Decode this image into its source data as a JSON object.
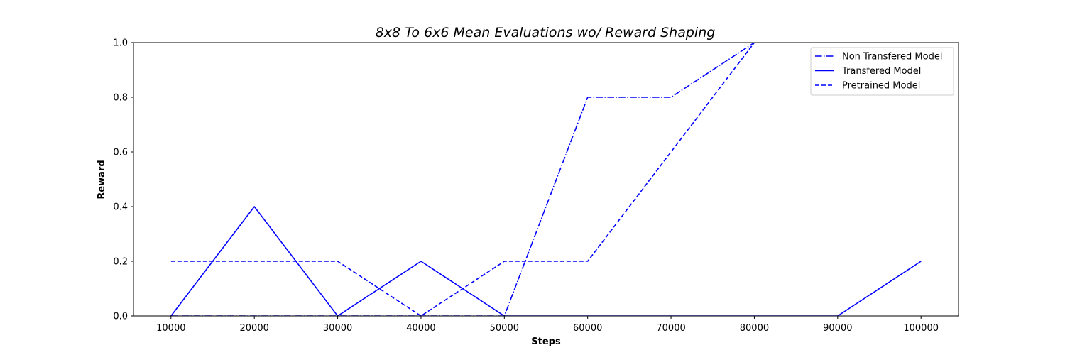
{
  "chart_data": {
    "type": "line",
    "title": "8x8 To 6x6 Mean Evaluations wo/ Reward Shaping",
    "xlabel": "Steps",
    "ylabel": "Reward",
    "x": [
      10000,
      20000,
      30000,
      40000,
      50000,
      60000,
      70000,
      80000,
      90000,
      100000
    ],
    "x_ticks": [
      "10000",
      "20000",
      "30000",
      "40000",
      "50000",
      "60000",
      "70000",
      "80000",
      "90000",
      "100000"
    ],
    "y_ticks": [
      "0.0",
      "0.2",
      "0.4",
      "0.6",
      "0.8",
      "1.0"
    ],
    "xlim": [
      5500,
      104500
    ],
    "ylim": [
      0.0,
      1.0
    ],
    "grid": false,
    "legend_position": "top-right",
    "series": [
      {
        "name": "Non Transfered Model",
        "style": "dashdot",
        "color": "#0000ff",
        "values": [
          0.0,
          0.0,
          0.0,
          0.0,
          0.0,
          0.8,
          0.8,
          1.0,
          null,
          null
        ]
      },
      {
        "name": "Transfered Model",
        "style": "solid",
        "color": "#0000ff",
        "values": [
          0.0,
          0.4,
          0.0,
          0.2,
          0.0,
          0.0,
          0.0,
          0.0,
          0.0,
          0.2
        ]
      },
      {
        "name": "Pretrained Model",
        "style": "dashed",
        "color": "#0000ff",
        "values": [
          0.2,
          0.2,
          0.2,
          0.0,
          0.2,
          0.2,
          0.6,
          1.0,
          null,
          null
        ]
      }
    ]
  }
}
